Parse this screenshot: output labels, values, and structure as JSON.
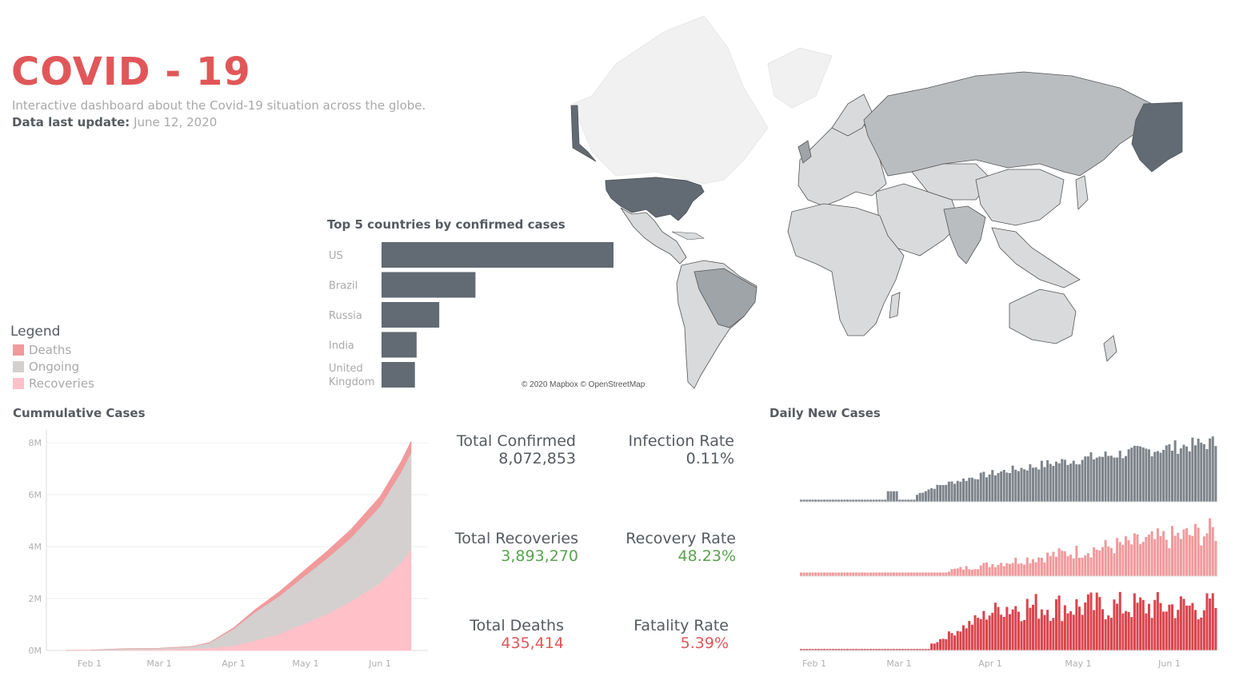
{
  "header": {
    "title": "COVID - 19",
    "subtitle": "Interactive dashboard about the Covid-19 situation across the globe.",
    "update_label": "Data last update:",
    "update_value": "June 12, 2020"
  },
  "legend": {
    "title": "Legend",
    "items": [
      {
        "label": "Deaths",
        "color": "#f09a9c"
      },
      {
        "label": "Ongoing",
        "color": "#d4d0cf"
      },
      {
        "label": "Recoveries",
        "color": "#ffc0c8"
      }
    ]
  },
  "map": {
    "credit": "© 2020 Mapbox © OpenStreetMap",
    "colors": {
      "high": "#626a73",
      "mid": "#9ea4a7",
      "low": "#d9dadb",
      "none": "#f1f1f1"
    }
  },
  "stats": {
    "total_confirmed_label": "Total Confirmed",
    "total_confirmed_value": "8,072,853",
    "infection_rate_label": "Infection Rate",
    "infection_rate_value": "0.11%",
    "total_recoveries_label": "Total Recoveries",
    "total_recoveries_value": "3,893,270",
    "recovery_rate_label": "Recovery Rate",
    "recovery_rate_value": "48.23%",
    "total_deaths_label": "Total Deaths",
    "total_deaths_value": "435,414",
    "fatality_rate_label": "Fatality Rate",
    "fatality_rate_value": "5.39%",
    "green": "#59a14f",
    "red": "#e15759"
  },
  "chart_data": [
    {
      "type": "bar",
      "orientation": "horizontal",
      "title": "Top 5 countries by confirmed cases",
      "categories": [
        "US",
        "Brazil",
        "Russia",
        "India",
        "United Kingdom"
      ],
      "values": [
        2050000,
        830000,
        510000,
        310000,
        295000
      ],
      "color": "#626a73"
    },
    {
      "type": "area",
      "title": "Cummulative Cases",
      "x_ticks": [
        "Feb 1",
        "Mar 1",
        "Apr 1",
        "May 1",
        "Jun 1"
      ],
      "y_ticks": [
        "0M",
        "2M",
        "4M",
        "6M",
        "8M"
      ],
      "ylim": [
        0,
        8500000
      ],
      "x": [
        "2020-01-22",
        "2020-02-01",
        "2020-02-15",
        "2020-03-01",
        "2020-03-15",
        "2020-03-22",
        "2020-04-01",
        "2020-04-10",
        "2020-04-20",
        "2020-05-01",
        "2020-05-10",
        "2020-05-20",
        "2020-06-01",
        "2020-06-10",
        "2020-06-14"
      ],
      "series": [
        {
          "name": "Recoveries",
          "color": "#ffc0c8",
          "values": [
            0,
            5000,
            15000,
            45000,
            75000,
            95000,
            180000,
            380000,
            640000,
            1050000,
            1400000,
            1900000,
            2600000,
            3400000,
            3893270
          ]
        },
        {
          "name": "Ongoing",
          "color": "#d4d0cf",
          "values": [
            500,
            6000,
            54000,
            40000,
            80000,
            200000,
            650000,
            1100000,
            1450000,
            1850000,
            2150000,
            2450000,
            2950000,
            3500000,
            3744169
          ]
        },
        {
          "name": "Deaths",
          "color": "#f09a9c",
          "values": [
            17,
            250,
            1600,
            3000,
            6500,
            14000,
            45000,
            100000,
            170000,
            230000,
            280000,
            325000,
            375000,
            415000,
            435414
          ]
        }
      ]
    },
    {
      "type": "bar",
      "title": "Daily New Cases",
      "x_ticks": [
        "Feb 1",
        "Mar 1",
        "Apr 1",
        "May 1",
        "Jun 1"
      ],
      "series": [
        {
          "name": "Confirmed",
          "color": "#7d848b"
        },
        {
          "name": "Recoveries",
          "color": "#f09a9c"
        },
        {
          "name": "Deaths",
          "color": "#d9454d"
        }
      ]
    }
  ]
}
